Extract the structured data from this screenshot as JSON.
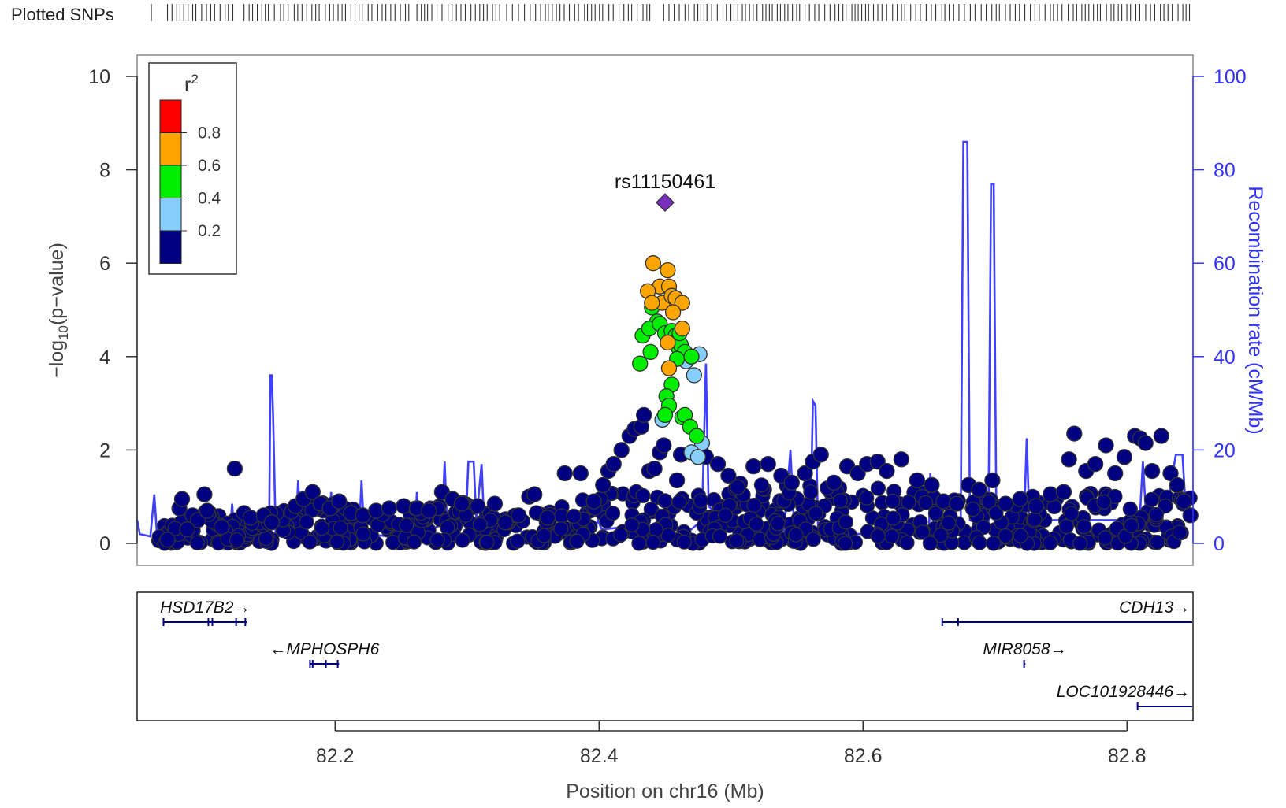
{
  "chart_data": {
    "type": "scatter",
    "title": "",
    "snp_track_label": "Plotted SNPs",
    "xlabel": "Position on chr16 (Mb)",
    "ylabel": "-log10(p-value)",
    "ylabel_parts": {
      "prefix": "−log",
      "sub": "10",
      "suffix": "(p−value)"
    },
    "y2label": "Recombination rate (cM/Mb)",
    "xlim": [
      82.05,
      82.85
    ],
    "ylim": [
      0,
      10
    ],
    "y2lim": [
      0,
      100
    ],
    "xticks": [
      "82.2",
      "82.4",
      "82.6",
      "82.8"
    ],
    "yticks": [
      "0",
      "2",
      "4",
      "6",
      "8",
      "10"
    ],
    "y2ticks": [
      "0",
      "20",
      "40",
      "60",
      "80",
      "100"
    ],
    "legend": {
      "title": "r",
      "title_sup": "2",
      "placement": "top-left",
      "bins": [
        {
          "color": "#ff0000",
          "range": [
            0.8,
            1.0
          ]
        },
        {
          "color": "#ffa500",
          "range": [
            0.6,
            0.8
          ]
        },
        {
          "color": "#00ee00",
          "range": [
            0.4,
            0.6
          ]
        },
        {
          "color": "#87cefa",
          "range": [
            0.2,
            0.4
          ]
        },
        {
          "color": "#000080",
          "range": [
            0.0,
            0.2
          ]
        }
      ],
      "labels": [
        "0.8",
        "0.6",
        "0.4",
        "0.2"
      ]
    },
    "lead_snp": {
      "name": "rs11150461",
      "x": 82.45,
      "y": 7.3,
      "color": "#7b2fbf"
    },
    "series": [
      {
        "r2_bin": "0.6-0.8",
        "color": "#ffa500",
        "points": [
          [
            82.441,
            6.0
          ],
          [
            82.446,
            5.5
          ],
          [
            82.437,
            5.4
          ],
          [
            82.448,
            5.15
          ],
          [
            82.452,
            5.85
          ],
          [
            82.453,
            5.5
          ],
          [
            82.455,
            5.3
          ],
          [
            82.458,
            5.25
          ],
          [
            82.463,
            5.15
          ],
          [
            82.456,
            4.95
          ],
          [
            82.44,
            5.15
          ],
          [
            82.463,
            4.6
          ],
          [
            82.452,
            4.3
          ],
          [
            82.453,
            3.75
          ]
        ]
      },
      {
        "r2_bin": "0.4-0.6",
        "color": "#00ee00",
        "points": [
          [
            82.44,
            5.05
          ],
          [
            82.444,
            4.75
          ],
          [
            82.433,
            4.45
          ],
          [
            82.438,
            4.6
          ],
          [
            82.446,
            4.7
          ],
          [
            82.45,
            4.5
          ],
          [
            82.455,
            4.55
          ],
          [
            82.458,
            4.45
          ],
          [
            82.46,
            4.2
          ],
          [
            82.462,
            4.25
          ],
          [
            82.465,
            4.1
          ],
          [
            82.459,
            3.95
          ],
          [
            82.47,
            4.0
          ],
          [
            82.431,
            3.85
          ],
          [
            82.439,
            4.1
          ],
          [
            82.455,
            3.4
          ],
          [
            82.451,
            3.15
          ],
          [
            82.453,
            2.95
          ],
          [
            82.45,
            2.75
          ],
          [
            82.463,
            2.7
          ],
          [
            82.465,
            2.75
          ],
          [
            82.469,
            2.5
          ],
          [
            82.474,
            2.3
          ],
          [
            82.461,
            4.5
          ]
        ]
      },
      {
        "r2_bin": "0.2-0.4",
        "color": "#87cefa",
        "points": [
          [
            82.476,
            4.05
          ],
          [
            82.472,
            3.6
          ],
          [
            82.478,
            2.15
          ],
          [
            82.47,
            1.95
          ],
          [
            82.475,
            1.85
          ],
          [
            82.466,
            3.9
          ],
          [
            82.448,
            2.65
          ]
        ]
      },
      {
        "r2_bin": "0.0-0.2",
        "color": "#000080",
        "points": [
          [
            82.073,
            0.08
          ],
          [
            82.082,
            0.75
          ],
          [
            82.084,
            0.95
          ],
          [
            82.092,
            0.6
          ],
          [
            82.101,
            1.05
          ],
          [
            82.096,
            0.5
          ],
          [
            82.103,
            0.7
          ],
          [
            82.088,
            0.3
          ],
          [
            82.114,
            0.35
          ],
          [
            82.124,
            1.6
          ],
          [
            82.131,
            0.65
          ],
          [
            82.136,
            0.55
          ],
          [
            82.146,
            0.6
          ],
          [
            82.152,
            0.45
          ],
          [
            82.17,
            0.8
          ],
          [
            82.176,
            0.95
          ],
          [
            82.183,
            1.1
          ],
          [
            82.189,
            0.85
          ],
          [
            82.196,
            0.75
          ],
          [
            82.203,
            0.9
          ],
          [
            82.212,
            0.65
          ],
          [
            82.221,
            0.6
          ],
          [
            82.231,
            0.7
          ],
          [
            82.241,
            0.75
          ],
          [
            82.252,
            0.8
          ],
          [
            82.262,
            0.75
          ],
          [
            82.271,
            0.7
          ],
          [
            82.281,
            1.1
          ],
          [
            82.289,
            0.95
          ],
          [
            82.296,
            0.85
          ],
          [
            82.308,
            0.8
          ],
          [
            82.321,
            0.85
          ],
          [
            82.329,
            0.45
          ],
          [
            82.339,
            0.6
          ],
          [
            82.347,
            1.0
          ],
          [
            82.351,
            1.05
          ],
          [
            82.361,
            0.55
          ],
          [
            82.374,
            1.5
          ],
          [
            82.386,
            1.5
          ],
          [
            82.396,
            0.9
          ],
          [
            82.403,
            1.25
          ],
          [
            82.407,
            1.55
          ],
          [
            82.411,
            1.7
          ],
          [
            82.417,
            2.0
          ],
          [
            82.423,
            2.3
          ],
          [
            82.427,
            2.45
          ],
          [
            82.432,
            2.5
          ],
          [
            82.434,
            2.75
          ],
          [
            82.438,
            1.55
          ],
          [
            82.442,
            1.6
          ],
          [
            82.446,
            1.95
          ],
          [
            82.449,
            2.1
          ],
          [
            82.462,
            1.9
          ],
          [
            82.459,
            1.35
          ],
          [
            82.481,
            1.85
          ],
          [
            82.49,
            1.7
          ],
          [
            82.498,
            1.45
          ],
          [
            82.505,
            1.2
          ],
          [
            82.517,
            1.65
          ],
          [
            82.528,
            1.7
          ],
          [
            82.538,
            1.45
          ],
          [
            82.546,
            1.3
          ],
          [
            82.556,
            1.5
          ],
          [
            82.562,
            1.75
          ],
          [
            82.568,
            1.9
          ],
          [
            82.578,
            1.3
          ],
          [
            82.588,
            1.65
          ],
          [
            82.596,
            1.5
          ],
          [
            82.603,
            1.7
          ],
          [
            82.611,
            1.75
          ],
          [
            82.618,
            1.55
          ],
          [
            82.629,
            1.8
          ],
          [
            82.641,
            1.35
          ],
          [
            82.652,
            1.25
          ],
          [
            82.661,
            0.9
          ],
          [
            82.671,
            0.85
          ],
          [
            82.68,
            1.25
          ],
          [
            82.688,
            1.15
          ],
          [
            82.698,
            1.35
          ],
          [
            82.708,
            0.85
          ],
          [
            82.719,
            0.95
          ],
          [
            82.731,
            0.8
          ],
          [
            82.742,
            1.05
          ],
          [
            82.752,
            1.1
          ],
          [
            82.756,
            1.8
          ],
          [
            82.76,
            2.35
          ],
          [
            82.769,
            1.55
          ],
          [
            82.776,
            1.7
          ],
          [
            82.784,
            2.1
          ],
          [
            82.791,
            1.5
          ],
          [
            82.798,
            1.85
          ],
          [
            82.806,
            2.3
          ],
          [
            82.81,
            2.25
          ],
          [
            82.814,
            2.15
          ],
          [
            82.819,
            1.55
          ],
          [
            82.826,
            2.3
          ],
          [
            82.833,
            1.5
          ],
          [
            82.838,
            1.25
          ],
          [
            82.843,
            0.9
          ],
          [
            82.848,
            0.6
          ]
        ]
      }
    ],
    "background_cloud": {
      "r2_bin": "0.0-0.2",
      "color": "#000080",
      "note_values_envelope": [
        [
          82.06,
          0.3
        ],
        [
          82.1,
          0.7
        ],
        [
          82.13,
          0.5
        ],
        [
          82.18,
          0.9
        ],
        [
          82.25,
          0.8
        ],
        [
          82.3,
          0.9
        ],
        [
          82.33,
          0.6
        ],
        [
          82.38,
          0.9
        ],
        [
          82.42,
          1.2
        ],
        [
          82.45,
          1.0
        ],
        [
          82.5,
          1.3
        ],
        [
          82.56,
          1.3
        ],
        [
          82.62,
          1.3
        ],
        [
          82.68,
          1.0
        ],
        [
          82.75,
          1.1
        ],
        [
          82.85,
          1.0
        ]
      ]
    },
    "recombination_rate": {
      "color": "#4040ff",
      "points": [
        [
          82.05,
          5
        ],
        [
          82.052,
          2
        ],
        [
          82.06,
          1.5
        ],
        [
          82.063,
          10.5
        ],
        [
          82.065,
          2
        ],
        [
          82.09,
          1
        ],
        [
          82.093,
          6
        ],
        [
          82.095,
          1
        ],
        [
          82.12,
          1
        ],
        [
          82.122,
          8.5
        ],
        [
          82.124,
          1
        ],
        [
          82.15,
          1
        ],
        [
          82.151,
          36
        ],
        [
          82.152,
          36
        ],
        [
          82.153,
          28
        ],
        [
          82.155,
          2
        ],
        [
          82.17,
          1
        ],
        [
          82.172,
          13.5
        ],
        [
          82.174,
          2
        ],
        [
          82.195,
          1
        ],
        [
          82.197,
          11
        ],
        [
          82.199,
          1
        ],
        [
          82.218,
          1
        ],
        [
          82.22,
          13.5
        ],
        [
          82.222,
          2
        ],
        [
          82.26,
          1
        ],
        [
          82.262,
          11
        ],
        [
          82.264,
          2
        ],
        [
          82.281,
          4
        ],
        [
          82.283,
          17.5
        ],
        [
          82.285,
          3
        ],
        [
          82.299,
          4
        ],
        [
          82.301,
          17.5
        ],
        [
          82.305,
          17.5
        ],
        [
          82.307,
          5
        ],
        [
          82.311,
          17
        ],
        [
          82.313,
          4
        ],
        [
          82.35,
          2
        ],
        [
          82.39,
          2
        ],
        [
          82.397,
          3
        ],
        [
          82.399,
          5
        ],
        [
          82.402,
          3
        ],
        [
          82.44,
          4
        ],
        [
          82.47,
          3
        ],
        [
          82.478,
          5
        ],
        [
          82.481,
          38.5
        ],
        [
          82.483,
          8
        ],
        [
          82.5,
          3
        ],
        [
          82.54,
          2
        ],
        [
          82.545,
          20
        ],
        [
          82.548,
          2
        ],
        [
          82.56,
          2
        ],
        [
          82.562,
          30.5
        ],
        [
          82.564,
          29.5
        ],
        [
          82.566,
          2
        ],
        [
          82.6,
          2
        ],
        [
          82.65,
          2
        ],
        [
          82.651,
          15
        ],
        [
          82.653,
          5
        ],
        [
          82.665,
          3
        ],
        [
          82.674,
          4
        ],
        [
          82.676,
          86
        ],
        [
          82.679,
          86
        ],
        [
          82.681,
          5
        ],
        [
          82.688,
          4
        ],
        [
          82.695,
          4
        ],
        [
          82.697,
          77
        ],
        [
          82.699,
          77
        ],
        [
          82.701,
          6
        ],
        [
          82.713,
          5
        ],
        [
          82.722,
          5
        ],
        [
          82.724,
          22.5
        ],
        [
          82.726,
          5
        ],
        [
          82.745,
          5
        ],
        [
          82.75,
          5
        ],
        [
          82.76,
          5
        ],
        [
          82.78,
          5
        ],
        [
          82.8,
          5
        ],
        [
          82.805,
          2
        ],
        [
          82.809,
          2
        ],
        [
          82.812,
          17.5
        ],
        [
          82.815,
          3
        ],
        [
          82.83,
          7
        ],
        [
          82.837,
          19
        ],
        [
          82.842,
          19
        ],
        [
          82.845,
          5
        ],
        [
          82.85,
          5
        ]
      ]
    },
    "genes": [
      {
        "name": "HSD17B2",
        "strand": "+",
        "start": 82.07,
        "end": 82.133,
        "row": 0,
        "exons": [
          82.07,
          82.104,
          82.107,
          82.125,
          82.132
        ],
        "label_side": "center"
      },
      {
        "name": "MPHOSPH6",
        "strand": "-",
        "start": 82.181,
        "end": 82.203,
        "row": 1,
        "exons": [
          82.181,
          82.183,
          82.193,
          82.202
        ],
        "label_side": "center"
      },
      {
        "name": "CDH13",
        "strand": "+",
        "start": 82.66,
        "end": 82.85,
        "row": 0,
        "exons": [
          82.66,
          82.672
        ],
        "label_side": "right"
      },
      {
        "name": "MIR8058",
        "strand": "+",
        "start": 82.722,
        "end": 82.723,
        "row": 1,
        "exons": [
          82.722
        ],
        "label_side": "center"
      },
      {
        "name": "LOC101928446",
        "strand": "+",
        "start": 82.808,
        "end": 82.85,
        "row": 2,
        "exons": [
          82.808
        ],
        "label_side": "right"
      }
    ],
    "snp_track_ranges": [
      [
        82.073,
        82.125
      ],
      [
        82.131,
        82.258
      ],
      [
        82.262,
        82.326
      ],
      [
        82.33,
        82.395
      ],
      [
        82.397,
        82.44
      ],
      [
        82.449,
        82.66
      ],
      [
        82.662,
        82.85
      ]
    ]
  }
}
